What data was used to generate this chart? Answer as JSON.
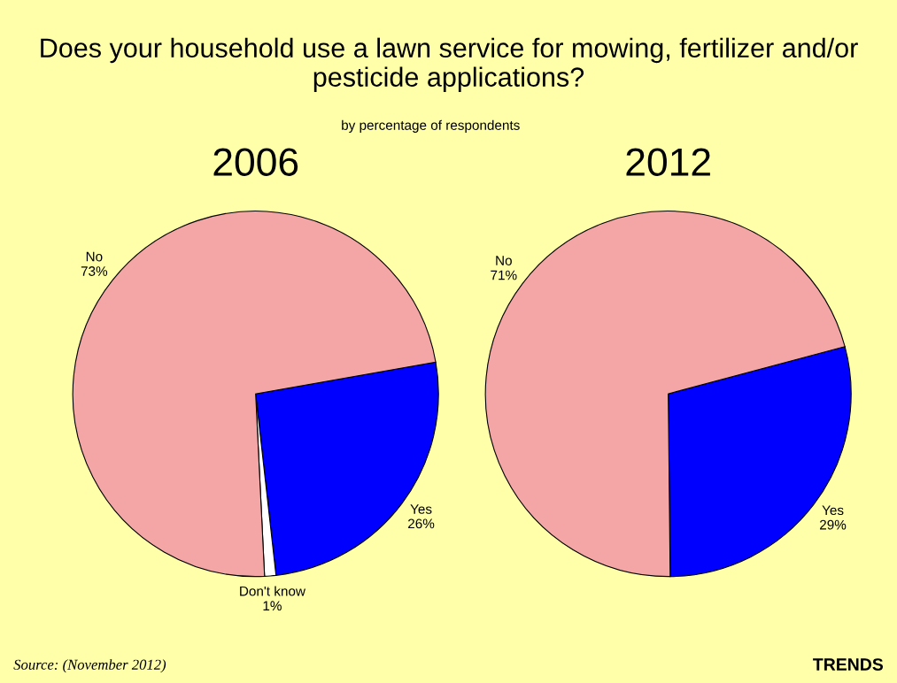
{
  "chart_data": [
    {
      "type": "pie",
      "title": "2006",
      "categories": [
        "Yes",
        "Don't know",
        "No"
      ],
      "values": [
        26,
        1,
        73
      ],
      "value_labels": [
        "26%",
        "1%",
        "73%"
      ],
      "colors": [
        "#0000ff",
        "#ffffff",
        "#f4a6a6"
      ],
      "annotations": [
        "Does your household use a lawn service for mowing, fertilizer and/or pesticide applications?",
        "by percentage of respondents",
        "Source: (November 2012)",
        "TRENDS"
      ]
    },
    {
      "type": "pie",
      "title": "2012",
      "categories": [
        "Yes",
        "No"
      ],
      "values": [
        29,
        71
      ],
      "value_labels": [
        "29%",
        "71%"
      ],
      "colors": [
        "#0000ff",
        "#f4a6a6"
      ]
    }
  ]
}
